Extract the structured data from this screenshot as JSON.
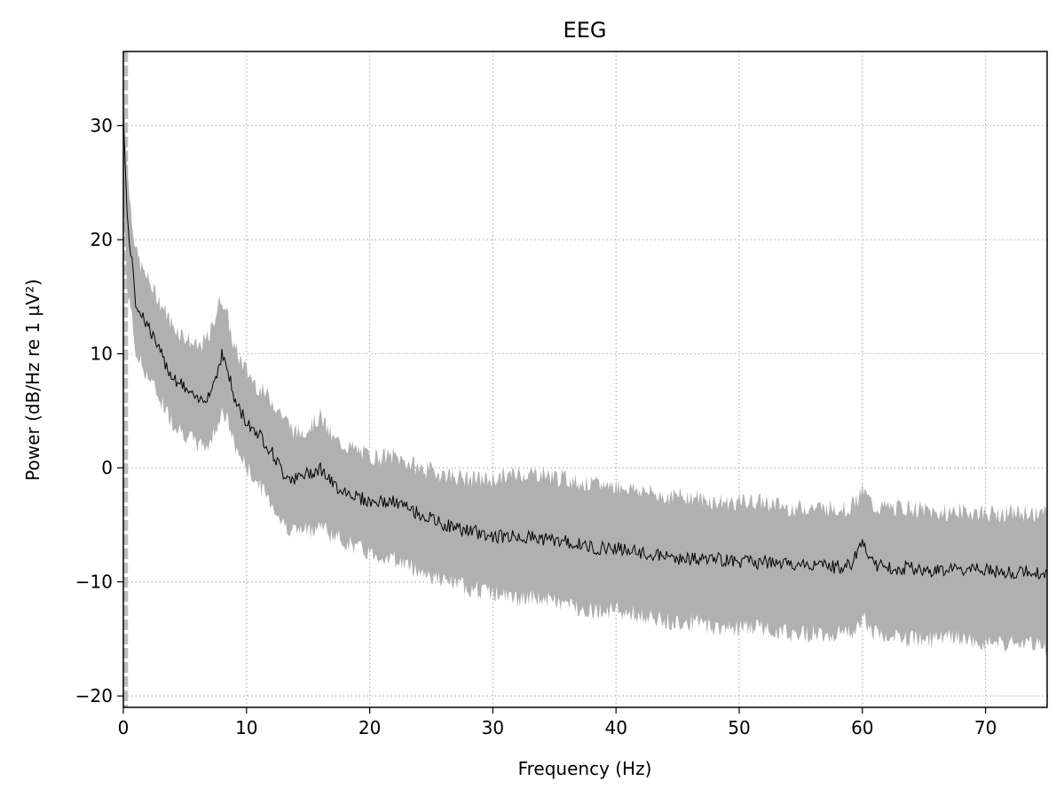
{
  "chart_data": {
    "type": "line",
    "title": "EEG",
    "xlabel": "Frequency (Hz)",
    "ylabel": "Power (dB/Hz re 1 µV²)",
    "xlim": [
      0,
      75
    ],
    "ylim": [
      -21,
      36.5
    ],
    "xticks": [
      0,
      10,
      20,
      30,
      40,
      50,
      60,
      70
    ],
    "yticks": [
      -20,
      -10,
      0,
      10,
      20,
      30
    ],
    "xtick_labels": [
      "0",
      "10",
      "20",
      "30",
      "40",
      "50",
      "60",
      "70"
    ],
    "ytick_labels": [
      "−20",
      "−10",
      "0",
      "10",
      "20",
      "30"
    ],
    "grid": true,
    "series": [
      {
        "role": "mean",
        "color": "#000000",
        "x": [
          0,
          0.3,
          0.6,
          1,
          1.5,
          2,
          3,
          4,
          5,
          6,
          7,
          7.5,
          8,
          8.5,
          9,
          9.5,
          10,
          11,
          12,
          13,
          14,
          15,
          16,
          17,
          18,
          19,
          20,
          22,
          24,
          26,
          28,
          30,
          32,
          34,
          36,
          38,
          40,
          42,
          44,
          46,
          48,
          50,
          52,
          54,
          56,
          58,
          59,
          60,
          61,
          62,
          64,
          66,
          68,
          70,
          72,
          74,
          75
        ],
        "y": [
          31,
          22,
          19,
          14.5,
          13.5,
          12.5,
          10,
          8,
          7,
          5.8,
          6.5,
          8,
          10,
          8.5,
          6,
          5,
          4,
          3,
          1.5,
          -0.5,
          -1,
          -0.5,
          0,
          -1.5,
          -2,
          -2.5,
          -3,
          -3,
          -4,
          -5,
          -5.5,
          -6,
          -6,
          -6.2,
          -6.5,
          -7,
          -7,
          -7.5,
          -7.8,
          -8,
          -8,
          -8.2,
          -8.3,
          -8.5,
          -8.5,
          -8.7,
          -8.6,
          -6.5,
          -8.5,
          -8.8,
          -8.8,
          -9,
          -8.9,
          -9,
          -9.2,
          -9.1,
          -9.5
        ]
      }
    ],
    "band": {
      "role": "spread",
      "color": "#b0b0b0",
      "x": [
        0,
        0.3,
        0.6,
        1,
        1.5,
        2,
        3,
        4,
        5,
        6,
        7,
        7.5,
        8,
        8.5,
        9,
        9.5,
        10,
        11,
        12,
        13,
        14,
        15,
        16,
        17,
        18,
        19,
        20,
        22,
        24,
        26,
        28,
        30,
        32,
        34,
        36,
        38,
        40,
        42,
        44,
        46,
        48,
        50,
        52,
        54,
        56,
        58,
        59,
        60,
        61,
        62,
        64,
        66,
        68,
        70,
        72,
        74,
        75
      ],
      "upper": [
        35,
        26,
        23,
        19,
        17.5,
        16.5,
        14.5,
        12.5,
        11.5,
        10.5,
        11.5,
        13.5,
        15,
        13,
        10.5,
        9.5,
        8.5,
        7,
        6,
        4.5,
        3,
        3.5,
        4.5,
        2.5,
        2,
        1.5,
        1,
        1,
        0,
        -0.5,
        -1,
        -1,
        -0.5,
        -0.5,
        -1,
        -1.5,
        -1.5,
        -2,
        -2.5,
        -2.5,
        -3,
        -3,
        -3,
        -3.5,
        -3.5,
        -3.5,
        -3.5,
        -2,
        -3.5,
        -3.5,
        -3.5,
        -4,
        -3.8,
        -4,
        -4,
        -4,
        -4
      ],
      "lower": [
        24,
        16,
        14,
        10,
        9,
        8,
        6,
        4,
        3,
        2,
        2,
        3.5,
        5,
        4,
        2,
        1,
        0,
        -1.5,
        -3,
        -5,
        -5.5,
        -5.5,
        -5,
        -6,
        -6.5,
        -7,
        -7.5,
        -8,
        -9,
        -10,
        -10.5,
        -11,
        -11.5,
        -11.5,
        -12,
        -12.5,
        -12.5,
        -13,
        -13.5,
        -13.5,
        -14,
        -14,
        -14,
        -14.5,
        -14.5,
        -14.5,
        -14.5,
        -13,
        -14.5,
        -15,
        -15,
        -15,
        -15,
        -15.5,
        -15.5,
        -15.5,
        -16
      ]
    },
    "vline": {
      "x": 0.2,
      "color": "#bdbdbd"
    }
  }
}
